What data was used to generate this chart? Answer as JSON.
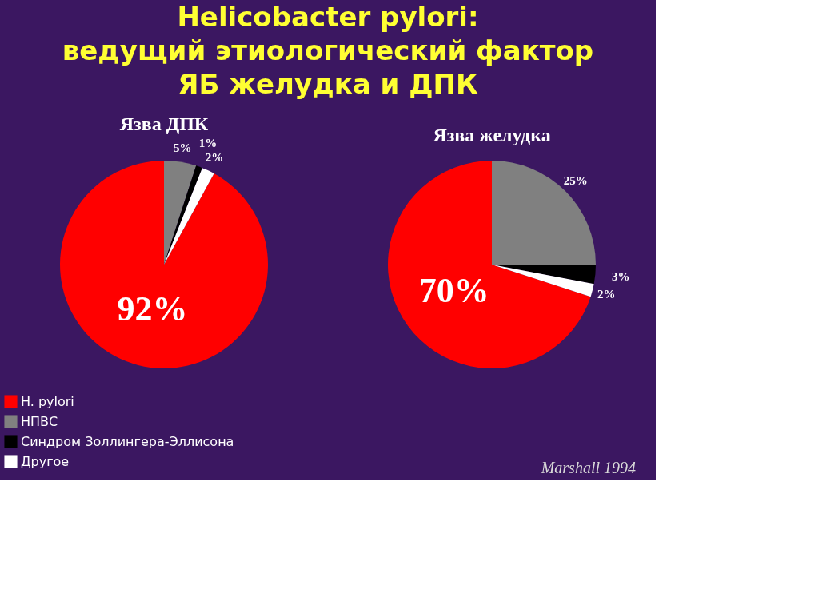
{
  "chart_data": [
    {
      "type": "pie",
      "title": "Helicobacter pylori:\nведущий этиологический фактор\nЯБ  желудка и ДПК",
      "subtitle": "Язва ДПК",
      "categories": [
        "H. pylori",
        "НПВС",
        "Синдром Золлингера-Эллисона",
        "Другое"
      ],
      "values": [
        92,
        5,
        1,
        2
      ],
      "colors": [
        "#ff0000",
        "#808080",
        "#000000",
        "#ffffff"
      ],
      "value_labels": [
        "92%",
        "5%",
        "1%",
        "2%"
      ],
      "legend": "bottom left"
    },
    {
      "type": "pie",
      "subtitle": "Язва желудка",
      "categories": [
        null,
        null,
        null,
        null
      ],
      "values": [
        70,
        25,
        3,
        2
      ],
      "colors": [
        "#ff0000",
        "#808080",
        "#000000",
        "#ffffff"
      ],
      "value_labels": [
        "70%",
        "25%",
        "3%",
        "2%"
      ],
      "annotations": [
        "Marshall 1994"
      ]
    }
  ]
}
